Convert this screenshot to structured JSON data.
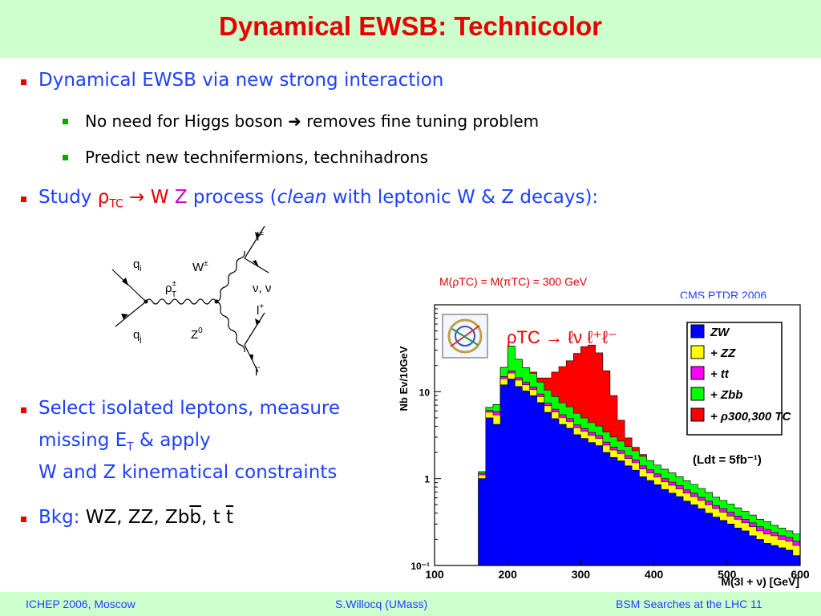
{
  "title": "Dynamical EWSB: Technicolor",
  "bullets": {
    "b1": "Dynamical EWSB via new strong interaction",
    "b1a": "No need for Higgs boson",
    "b1a_rest": "removes fine tuning problem",
    "b1b": "Predict new technifermions, technihadrons",
    "b2_pre": "Study",
    "b2_rho": "ρ",
    "b2_tc": "TC",
    "b2_arrow": "→",
    "b2_w": "W",
    "b2_z": "Z",
    "b2_mid": "process (",
    "b2_clean": "clean",
    "b2_post": "with leptonic W & Z decays):",
    "b3_l1": "Select isolated leptons, measure",
    "b3_l2a": "missing E",
    "b3_l2sub": "T",
    "b3_l2b": "& apply",
    "b3_l3": "W and Z kinematical constraints",
    "b4_pre": "Bkg:",
    "b4_a": "WZ, ZZ, Zb",
    "b4_b": "b",
    "b4_c": ", t",
    "b4_d": "t"
  },
  "feynman": {
    "qi": "q",
    "qi_sub": "i",
    "qj": "q",
    "qj_sub": "j",
    "rho": "ρ",
    "rho_sup": "±",
    "rho_sub": "T",
    "w": "W",
    "w_sup": "±",
    "z": "Z",
    "z_sup": "0",
    "l_pm": "l",
    "l_pm_sup": "±",
    "nu": "ν, ν",
    "l_plus": "l",
    "l_plus_sup": "+",
    "l_minus": "l",
    "l_minus_sup": "-"
  },
  "captions": {
    "mass": "M(ρTC) = M(πTC) = 300 GeV",
    "cms": "CMS PTDR 2006"
  },
  "footer": {
    "left": "ICHEP 2006, Moscow",
    "center": "S.Willocq  (UMass)",
    "right": "BSM Searches at the LHC  11"
  },
  "chart_data": {
    "type": "area",
    "stacked": true,
    "log_scale_y": true,
    "xlabel": "M(3l + ν)  [GeV]",
    "ylabel": "Nb Ev/10GeV",
    "xlim": [
      100,
      600
    ],
    "ylim": [
      0.1,
      100
    ],
    "x_ticks": [
      100,
      200,
      300,
      400,
      500,
      600
    ],
    "y_ticks": [
      "10⁻¹",
      "1",
      "10"
    ],
    "bin_width": 10,
    "annotation": "ρTC → ℓν ℓ⁺ℓ⁻",
    "lumi": "(Ldt = 5fb⁻¹)",
    "colors": {
      "ZW": "#0000ff",
      "ZZ": "#ffff00",
      "tt": "#ff00ff",
      "Zbb": "#00ff00",
      "rho": "#ff0000"
    },
    "x": [
      165,
      175,
      185,
      195,
      205,
      215,
      225,
      235,
      245,
      255,
      265,
      275,
      285,
      295,
      305,
      315,
      325,
      335,
      345,
      355,
      365,
      375,
      385,
      395,
      405,
      415,
      425,
      435,
      445,
      455,
      465,
      475,
      485,
      495,
      505,
      515,
      525,
      535,
      545,
      555,
      565,
      575,
      585,
      595
    ],
    "series": [
      {
        "name": "ZW",
        "values": [
          1.0,
          5.0,
          4.2,
          12.0,
          14.0,
          11.5,
          10.2,
          9.0,
          7.5,
          5.8,
          4.9,
          4.2,
          3.8,
          3.2,
          2.9,
          2.6,
          2.4,
          2.0,
          1.75,
          1.6,
          1.4,
          1.25,
          1.05,
          0.95,
          0.85,
          0.75,
          0.68,
          0.62,
          0.55,
          0.5,
          0.45,
          0.4,
          0.36,
          0.33,
          0.3,
          0.27,
          0.25,
          0.22,
          0.2,
          0.18,
          0.17,
          0.16,
          0.15,
          0.13
        ]
      },
      {
        "name": "+ ZZ",
        "values": [
          0.1,
          0.8,
          1.2,
          2.1,
          2.4,
          2.1,
          1.8,
          1.6,
          1.3,
          1.1,
          0.95,
          0.85,
          0.75,
          0.65,
          0.6,
          0.55,
          0.5,
          0.43,
          0.38,
          0.34,
          0.3,
          0.27,
          0.24,
          0.21,
          0.19,
          0.17,
          0.16,
          0.14,
          0.13,
          0.12,
          0.11,
          0.1,
          0.09,
          0.08,
          0.07,
          0.07,
          0.06,
          0.06,
          0.05,
          0.05,
          0.05,
          0.04,
          0.04,
          0.04
        ]
      },
      {
        "name": "+ tt",
        "values": [
          0.05,
          0.3,
          0.5,
          0.9,
          1.0,
          0.9,
          0.8,
          0.7,
          0.6,
          0.5,
          0.45,
          0.4,
          0.35,
          0.3,
          0.28,
          0.25,
          0.22,
          0.2,
          0.18,
          0.16,
          0.14,
          0.12,
          0.11,
          0.1,
          0.09,
          0.08,
          0.07,
          0.07,
          0.06,
          0.06,
          0.05,
          0.05,
          0.04,
          0.04,
          0.04,
          0.03,
          0.03,
          0.03,
          0.03,
          0.03,
          0.02,
          0.02,
          0.02,
          0.02
        ]
      },
      {
        "name": "+ Zbb",
        "values": [
          0.05,
          0.5,
          1.2,
          4.0,
          16.0,
          9.0,
          6.0,
          5.0,
          3.5,
          3.0,
          2.5,
          2.0,
          1.8,
          1.5,
          1.2,
          1.0,
          0.9,
          0.8,
          0.7,
          0.6,
          0.5,
          0.45,
          0.4,
          0.35,
          0.3,
          0.28,
          0.25,
          0.22,
          0.2,
          0.18,
          0.16,
          0.14,
          0.12,
          0.11,
          0.1,
          0.09,
          0.08,
          0.07,
          0.06,
          0.06,
          0.05,
          0.05,
          0.04,
          0.04
        ]
      },
      {
        "name": "+ ρ300,300 TC",
        "values": [
          0,
          0,
          0,
          0,
          0,
          0,
          0,
          0.5,
          1.5,
          4.0,
          8.0,
          12.0,
          16.0,
          22.0,
          28.0,
          30.0,
          24.0,
          14.0,
          6.0,
          2.0,
          0.6,
          0.2,
          0.1,
          0,
          0,
          0,
          0,
          0,
          0,
          0,
          0,
          0,
          0,
          0,
          0,
          0,
          0,
          0,
          0,
          0,
          0,
          0,
          0,
          0
        ]
      }
    ]
  }
}
